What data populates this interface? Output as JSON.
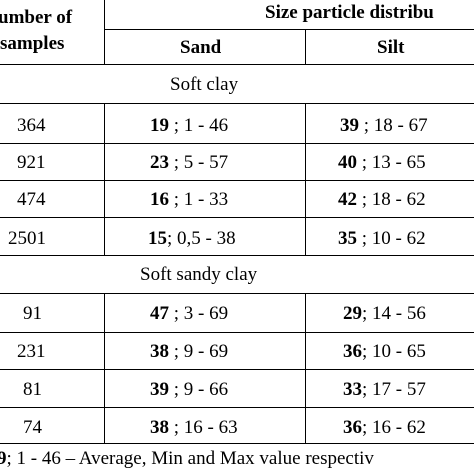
{
  "table": {
    "header": {
      "samples_col_line1": "umber of",
      "samples_col_line2": "samples",
      "group": "Size particle distribu",
      "sand": "Sand",
      "silt": "Silt"
    },
    "sections": [
      {
        "title": "Soft clay",
        "rows": [
          {
            "n": "364",
            "sand_avg": "19",
            "sand_rest": " ; 1  - 46",
            "silt_avg": "39",
            "silt_rest": " ; 18  - 67"
          },
          {
            "n": "921",
            "sand_avg": "23",
            "sand_rest": " ; 5  - 57",
            "silt_avg": "40",
            "silt_rest": " ;  13  - 65"
          },
          {
            "n": "474",
            "sand_avg": "16",
            "sand_rest": " ; 1  - 33",
            "silt_avg": "42",
            "silt_rest": " ; 18  - 62"
          },
          {
            "n": "2501",
            "sand_avg": "15",
            "sand_rest": "; 0,5  - 38",
            "silt_avg": "35",
            "silt_rest": " ; 10  - 62"
          }
        ]
      },
      {
        "title": "Soft sandy clay",
        "rows": [
          {
            "n": "91",
            "sand_avg": "47",
            "sand_rest": " ; 3  - 69",
            "silt_avg": "29",
            "silt_rest": "; 14  - 56"
          },
          {
            "n": "231",
            "sand_avg": "38",
            "sand_rest": " ;  9  - 69",
            "silt_avg": "36",
            "silt_rest": "; 10  - 65"
          },
          {
            "n": "81",
            "sand_avg": "39",
            "sand_rest": " ; 9  - 66",
            "silt_avg": "33",
            "silt_rest": "; 17  - 57"
          },
          {
            "n": "74",
            "sand_avg": "38",
            "sand_rest": " ; 16  - 63",
            "silt_avg": "36",
            "silt_rest": "; 16  - 62"
          }
        ]
      }
    ],
    "footnote_bold": "9",
    "footnote_rest": "; 1 - 46 – Average, Min and Max value respectiv"
  }
}
